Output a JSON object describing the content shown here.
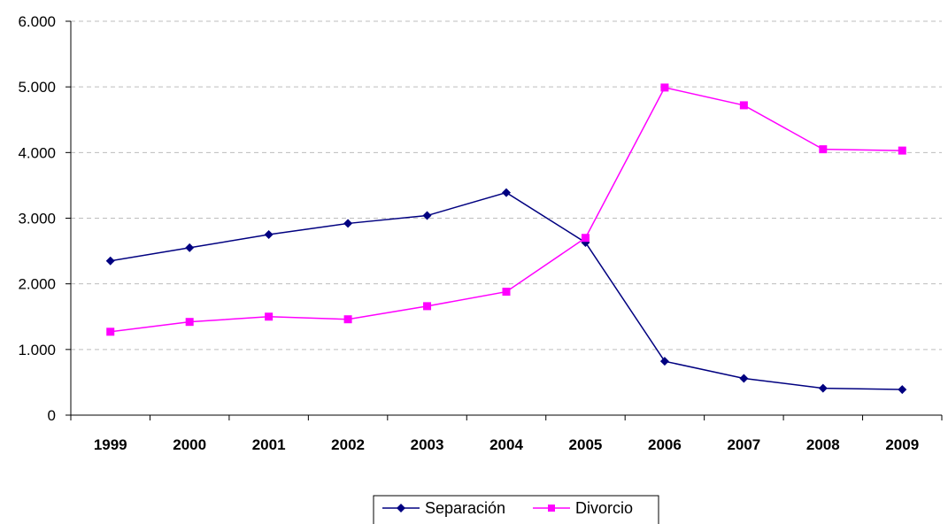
{
  "chart_data": {
    "type": "line",
    "title": "",
    "xlabel": "",
    "ylabel": "",
    "categories": [
      "1999",
      "2000",
      "2001",
      "2002",
      "2003",
      "2004",
      "2005",
      "2006",
      "2007",
      "2008",
      "2009"
    ],
    "y_ticks": [
      "0",
      "1.000",
      "2.000",
      "3.000",
      "4.000",
      "5.000",
      "6.000"
    ],
    "ylim": [
      0,
      6000
    ],
    "grid": "horizontal dashed",
    "legend_position": "bottom",
    "series": [
      {
        "name": "Separación",
        "color": "#000080",
        "marker": "diamond",
        "values": [
          2350,
          2550,
          2750,
          2920,
          3040,
          3390,
          2630,
          820,
          560,
          410,
          390
        ]
      },
      {
        "name": "Divorcio",
        "color": "#FF00FF",
        "marker": "square",
        "values": [
          1270,
          1420,
          1500,
          1460,
          1660,
          1880,
          2700,
          4990,
          4720,
          4050,
          4030
        ]
      }
    ]
  }
}
